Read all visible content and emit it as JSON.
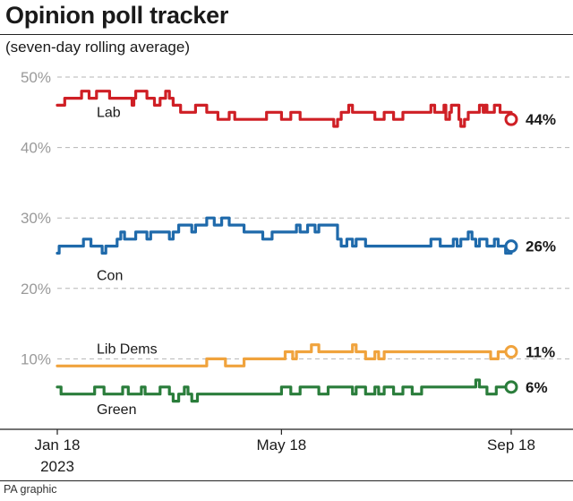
{
  "header": {
    "title": "Opinion poll tracker",
    "subtitle": "(seven-day rolling average)"
  },
  "footer": {
    "source": "PA graphic"
  },
  "chart_data": {
    "type": "line",
    "title": "Opinion poll tracker",
    "subtitle": "(seven-day rolling average)",
    "ylim": [
      0,
      50
    ],
    "yticks": [
      10,
      20,
      30,
      40,
      50
    ],
    "ytick_labels": [
      "10%",
      "20%",
      "30%",
      "40%",
      "50%"
    ],
    "grid": "horizontal dashed",
    "xlim": [
      0,
      243
    ],
    "xticks": [
      {
        "day": 0,
        "label": "Jan 18",
        "sublabel": "2023"
      },
      {
        "day": 120,
        "label": "May 18",
        "sublabel": ""
      },
      {
        "day": 243,
        "label": "Sep 18",
        "sublabel": ""
      }
    ],
    "series": [
      {
        "name": "Lab",
        "color": "#cf1f25",
        "end_label": "44%",
        "x": [
          0,
          3,
          4,
          12,
          13,
          16,
          17,
          20,
          21,
          26,
          28,
          30,
          38,
          40,
          41,
          42,
          46,
          48,
          50,
          52,
          54,
          55,
          58,
          60,
          62,
          65,
          66,
          72,
          74,
          78,
          80,
          85,
          86,
          90,
          92,
          94,
          95,
          100,
          102,
          110,
          112,
          120,
          125,
          130,
          140,
          145,
          148,
          150,
          152,
          154,
          156,
          158,
          165,
          170,
          175,
          180,
          185,
          190,
          195,
          200,
          202,
          205,
          207,
          208,
          210,
          211,
          213,
          215,
          216,
          218,
          220,
          224,
          226,
          228,
          229,
          230,
          234,
          236,
          237,
          239,
          243
        ],
        "values": [
          46,
          46,
          47,
          47,
          48,
          48,
          47,
          47,
          48,
          48,
          47,
          47,
          47,
          46,
          47,
          48,
          48,
          47,
          47,
          46,
          46,
          47,
          48,
          47,
          46,
          46,
          45,
          45,
          46,
          46,
          45,
          45,
          44,
          44,
          45,
          45,
          44,
          44,
          44,
          44,
          45,
          44,
          45,
          44,
          44,
          44,
          43,
          44,
          45,
          45,
          46,
          45,
          45,
          44,
          45,
          44,
          45,
          45,
          45,
          46,
          45,
          45,
          46,
          44,
          45,
          46,
          46,
          44,
          43,
          44,
          45,
          45,
          46,
          45,
          46,
          45,
          46,
          46,
          45,
          45,
          44
        ]
      },
      {
        "name": "Con",
        "color": "#1f6aab",
        "end_label": "26%",
        "x": [
          0,
          1,
          3,
          10,
          14,
          18,
          20,
          22,
          24,
          26,
          28,
          30,
          32,
          34,
          36,
          38,
          40,
          42,
          45,
          48,
          50,
          52,
          55,
          58,
          60,
          62,
          65,
          68,
          70,
          72,
          74,
          76,
          80,
          84,
          88,
          92,
          95,
          100,
          104,
          108,
          110,
          115,
          120,
          124,
          126,
          128,
          130,
          134,
          138,
          140,
          145,
          150,
          152,
          155,
          158,
          160,
          165,
          170,
          175,
          180,
          185,
          190,
          195,
          200,
          205,
          210,
          212,
          214,
          216,
          218,
          220,
          222,
          224,
          226,
          230,
          234,
          236,
          240,
          243
        ],
        "values": [
          25,
          26,
          26,
          26,
          27,
          26,
          26,
          26,
          25,
          26,
          26,
          26,
          27,
          28,
          27,
          27,
          27,
          28,
          28,
          27,
          28,
          28,
          28,
          28,
          27,
          28,
          29,
          29,
          29,
          28,
          29,
          29,
          30,
          29,
          30,
          29,
          29,
          28,
          28,
          28,
          27,
          28,
          28,
          28,
          28,
          29,
          28,
          29,
          28,
          29,
          29,
          27,
          26,
          27,
          26,
          27,
          26,
          26,
          26,
          26,
          26,
          26,
          26,
          27,
          26,
          26,
          27,
          26,
          27,
          27,
          28,
          27,
          26,
          27,
          26,
          27,
          26,
          25,
          26
        ]
      },
      {
        "name": "Lib Dems",
        "color": "#f0a33d",
        "end_label": "11%",
        "x": [
          0,
          20,
          40,
          45,
          60,
          70,
          80,
          90,
          100,
          108,
          114,
          120,
          122,
          124,
          126,
          128,
          130,
          132,
          136,
          140,
          145,
          150,
          155,
          158,
          160,
          165,
          170,
          172,
          175,
          180,
          185,
          190,
          200,
          210,
          220,
          224,
          230,
          232,
          236,
          240,
          243
        ],
        "values": [
          9,
          9,
          9,
          9,
          9,
          9,
          10,
          9,
          10,
          10,
          10,
          10,
          11,
          11,
          10,
          11,
          11,
          11,
          12,
          11,
          11,
          11,
          11,
          12,
          11,
          10,
          11,
          10,
          11,
          11,
          11,
          11,
          11,
          11,
          11,
          11,
          11,
          10,
          11,
          11,
          11
        ]
      },
      {
        "name": "Green",
        "color": "#2a7d3b",
        "end_label": "6%",
        "x": [
          0,
          2,
          5,
          15,
          18,
          20,
          25,
          28,
          30,
          35,
          38,
          40,
          45,
          47,
          50,
          55,
          58,
          60,
          62,
          65,
          68,
          70,
          72,
          75,
          80,
          85,
          90,
          100,
          110,
          120,
          125,
          130,
          135,
          140,
          145,
          150,
          155,
          158,
          160,
          165,
          170,
          172,
          175,
          180,
          185,
          190,
          195,
          200,
          205,
          210,
          215,
          220,
          224,
          226,
          228,
          230,
          235,
          240,
          243
        ],
        "values": [
          6,
          5,
          5,
          5,
          5,
          6,
          5,
          5,
          5,
          6,
          5,
          5,
          6,
          5,
          5,
          6,
          6,
          5,
          4,
          5,
          6,
          5,
          4,
          5,
          5,
          5,
          5,
          5,
          5,
          6,
          5,
          6,
          6,
          5,
          6,
          6,
          6,
          5,
          6,
          5,
          6,
          5,
          6,
          5,
          6,
          5,
          6,
          6,
          6,
          6,
          6,
          6,
          7,
          6,
          6,
          5,
          6,
          6,
          6
        ]
      }
    ]
  }
}
